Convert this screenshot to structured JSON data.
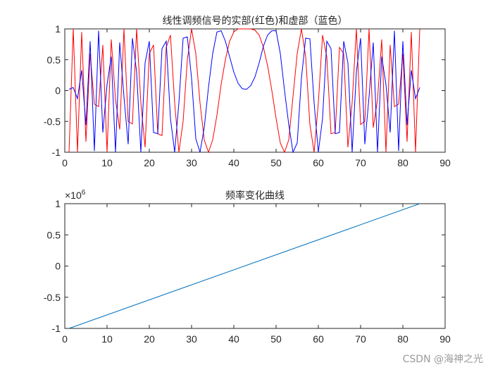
{
  "chart_data": [
    {
      "type": "line",
      "title": "线性调频信号的实部(红色)和虚部（蓝色）",
      "xlabel": "",
      "ylabel": "",
      "xlim": [
        0,
        90
      ],
      "ylim": [
        -1,
        1
      ],
      "xticks": [
        0,
        10,
        20,
        30,
        40,
        50,
        60,
        70,
        80,
        90
      ],
      "yticks": [
        -1,
        -0.5,
        0,
        0.5,
        1
      ],
      "ytick_labels": [
        "-1",
        "-0.5",
        "0",
        "0.5",
        "1"
      ],
      "grid": false,
      "series": [
        {
          "name": "实部",
          "color": "#ff0000",
          "x_start": 1,
          "values": [
            -1,
            1,
            -1,
            0.95,
            -0.83,
            0.6,
            -0.22,
            -0.26,
            0.74,
            -1,
            0.83,
            -0.15,
            -0.63,
            1,
            -0.5,
            -0.54,
            1,
            -0.2,
            -0.92,
            0.6,
            0.74,
            -0.7,
            -0.73,
            0.7,
            0.9,
            -0.2,
            -1,
            -0.5,
            0.5,
            1,
            0.6,
            -0.2,
            -0.8,
            -1,
            -0.8,
            -0.4,
            0.1,
            0.5,
            0.8,
            0.95,
            1,
            1,
            1,
            1,
            0.98,
            0.9,
            0.7,
            0.4,
            0,
            -0.45,
            -0.85,
            -1,
            -0.8,
            -0.1,
            0.6,
            1,
            0.55,
            -0.55,
            -1,
            -0.2,
            0.9,
            0.55,
            -0.7,
            -0.68,
            0.7,
            0.6,
            -0.92,
            -0.2,
            1,
            -0.55,
            -0.5,
            1,
            -0.6,
            -0.15,
            0.83,
            -1,
            0.74,
            -0.26,
            -0.22,
            0.6,
            -0.83,
            0.95,
            -1,
            1
          ]
        },
        {
          "name": "虚部",
          "color": "#0000ff",
          "x_start": 1,
          "values": [
            0.02,
            0.05,
            -0.13,
            0.33,
            -0.56,
            0.8,
            -0.98,
            0.97,
            -0.68,
            0.1,
            0.55,
            -1,
            0.78,
            -0.1,
            -0.87,
            0.85,
            0.3,
            -1,
            0.45,
            0.8,
            -0.68,
            -0.7,
            0.68,
            0.8,
            -0.45,
            -1,
            -0.2,
            0.85,
            0.87,
            0.2,
            -0.78,
            -1,
            -0.6,
            0.05,
            0.6,
            0.95,
            0.97,
            0.8,
            0.55,
            0.3,
            0.12,
            0.03,
            0.02,
            0.08,
            0.22,
            0.45,
            0.72,
            0.9,
            0.97,
            0.97,
            0.6,
            0,
            -0.55,
            -1,
            -0.85,
            0.2,
            0.85,
            0.84,
            -0.2,
            -1,
            -0.45,
            0.8,
            0.68,
            -0.7,
            -0.68,
            0.8,
            0.45,
            -1,
            0.3,
            0.85,
            -0.87,
            -0.1,
            0.78,
            -1,
            0.55,
            0.1,
            -0.68,
            0.97,
            -0.98,
            0.8,
            -0.56,
            0.33,
            -0.13,
            0.05
          ]
        }
      ]
    },
    {
      "type": "line",
      "title": "频率变化曲线",
      "xlabel": "",
      "ylabel": "",
      "xlim": [
        0,
        90
      ],
      "ylim": [
        -1000000,
        1000000
      ],
      "y_exponent_label": "×10^6",
      "xticks": [
        0,
        10,
        20,
        30,
        40,
        50,
        60,
        70,
        80,
        90
      ],
      "yticks": [
        -1,
        -0.5,
        0,
        0.5,
        1
      ],
      "ytick_labels": [
        "-1",
        "-0.5",
        "0",
        "0.5",
        "1"
      ],
      "grid": false,
      "series": [
        {
          "name": "频率",
          "color": "#0072bd",
          "x": [
            1,
            84
          ],
          "values": [
            -1000000,
            1000000
          ]
        }
      ]
    }
  ],
  "watermark": "CSDN @海神之光",
  "exp_base": "×10",
  "exp_power": "6"
}
